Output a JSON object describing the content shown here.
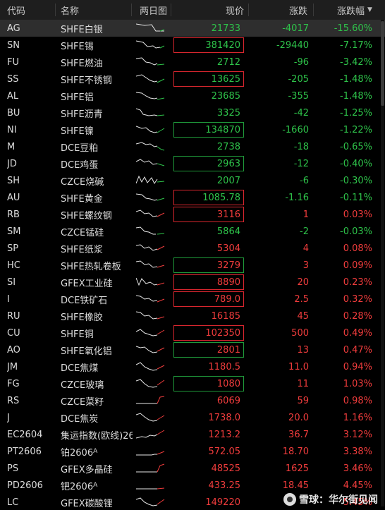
{
  "header": {
    "code": "代码",
    "name": "名称",
    "chart": "两日图",
    "price": "现价",
    "change": "涨跌",
    "pct": "涨跌幅",
    "sort_arrow": "▼"
  },
  "colors": {
    "up": "#f03c3c",
    "down": "#2ec34a"
  },
  "rows": [
    {
      "code": "AG",
      "name": "SHFE白银",
      "price": "21733",
      "change": "-4017",
      "pct": "-15.60%",
      "dir": "down",
      "box": "",
      "spark": [
        [
          0,
          2
        ],
        [
          12,
          4
        ],
        [
          22,
          3
        ],
        [
          28,
          12
        ],
        [
          34,
          12
        ],
        [
          40,
          12
        ]
      ],
      "sparkEnd": [
        [
          34,
          12
        ],
        [
          40,
          10
        ]
      ]
    },
    {
      "code": "SN",
      "name": "SHFE锡",
      "price": "381420",
      "change": "-29440",
      "pct": "-7.17%",
      "dir": "down",
      "box": "up",
      "spark": [
        [
          0,
          2
        ],
        [
          10,
          4
        ],
        [
          16,
          10
        ],
        [
          24,
          9
        ],
        [
          28,
          12
        ],
        [
          34,
          11
        ]
      ],
      "sparkEnd": [
        [
          34,
          12
        ],
        [
          40,
          9
        ]
      ]
    },
    {
      "code": "FU",
      "name": "SHFE燃油",
      "price": "2712",
      "change": "-96",
      "pct": "-3.42%",
      "dir": "down",
      "box": "",
      "spark": [
        [
          0,
          3
        ],
        [
          8,
          2
        ],
        [
          14,
          8
        ],
        [
          20,
          9
        ],
        [
          26,
          12
        ],
        [
          30,
          10
        ]
      ],
      "sparkEnd": [
        [
          30,
          12
        ],
        [
          40,
          11
        ]
      ]
    },
    {
      "code": "SS",
      "name": "SHFE不锈钢",
      "price": "13625",
      "change": "-205",
      "pct": "-1.48%",
      "dir": "down",
      "box": "up",
      "spark": [
        [
          0,
          4
        ],
        [
          8,
          2
        ],
        [
          14,
          6
        ],
        [
          20,
          10
        ],
        [
          26,
          12
        ],
        [
          30,
          11
        ]
      ],
      "sparkEnd": [
        [
          30,
          13
        ],
        [
          40,
          8
        ]
      ]
    },
    {
      "code": "AL",
      "name": "SHFE铝",
      "price": "23685",
      "change": "-355",
      "pct": "-1.48%",
      "dir": "down",
      "box": "",
      "spark": [
        [
          0,
          3
        ],
        [
          8,
          4
        ],
        [
          14,
          8
        ],
        [
          20,
          11
        ],
        [
          26,
          12
        ],
        [
          30,
          11
        ]
      ],
      "sparkEnd": [
        [
          30,
          13
        ],
        [
          40,
          11
        ]
      ]
    },
    {
      "code": "BU",
      "name": "SHFE沥青",
      "price": "3325",
      "change": "-42",
      "pct": "-1.25%",
      "dir": "down",
      "box": "",
      "spark": [
        [
          0,
          2
        ],
        [
          6,
          4
        ],
        [
          10,
          10
        ],
        [
          18,
          12
        ],
        [
          26,
          11
        ],
        [
          30,
          12
        ]
      ],
      "sparkEnd": [
        [
          30,
          12
        ],
        [
          40,
          11
        ]
      ]
    },
    {
      "code": "NI",
      "name": "SHFE镍",
      "price": "134870",
      "change": "-1660",
      "pct": "-1.22%",
      "dir": "down",
      "box": "dn",
      "spark": [
        [
          0,
          3
        ],
        [
          8,
          6
        ],
        [
          14,
          5
        ],
        [
          20,
          10
        ],
        [
          26,
          12
        ],
        [
          30,
          11
        ]
      ],
      "sparkEnd": [
        [
          30,
          12
        ],
        [
          40,
          6
        ]
      ]
    },
    {
      "code": "M",
      "name": "DCE豆粕",
      "price": "2738",
      "change": "-18",
      "pct": "-0.65%",
      "dir": "down",
      "box": "",
      "spark": [
        [
          0,
          4
        ],
        [
          8,
          2
        ],
        [
          14,
          5
        ],
        [
          20,
          4
        ],
        [
          26,
          8
        ],
        [
          30,
          7
        ]
      ],
      "sparkEnd": [
        [
          30,
          8
        ],
        [
          36,
          12
        ],
        [
          40,
          13
        ]
      ]
    },
    {
      "code": "JD",
      "name": "DCE鸡蛋",
      "price": "2963",
      "change": "-12",
      "pct": "-0.40%",
      "dir": "down",
      "box": "dn",
      "spark": [
        [
          0,
          5
        ],
        [
          6,
          2
        ],
        [
          12,
          6
        ],
        [
          18,
          4
        ],
        [
          24,
          9
        ],
        [
          30,
          8
        ]
      ],
      "sparkEnd": [
        [
          30,
          8
        ],
        [
          40,
          11
        ]
      ]
    },
    {
      "code": "SH",
      "name": "CZCE烧碱",
      "price": "2007",
      "change": "-6",
      "pct": "-0.30%",
      "dir": "down",
      "box": "",
      "spark": [
        [
          0,
          12
        ],
        [
          4,
          2
        ],
        [
          8,
          10
        ],
        [
          12,
          3
        ],
        [
          16,
          11
        ],
        [
          22,
          4
        ],
        [
          26,
          12
        ],
        [
          30,
          6
        ]
      ],
      "sparkEnd": [
        [
          30,
          10
        ],
        [
          40,
          9
        ]
      ]
    },
    {
      "code": "AU",
      "name": "SHFE黄金",
      "price": "1085.78",
      "change": "-1.16",
      "pct": "-0.11%",
      "dir": "down",
      "box": "up",
      "spark": [
        [
          0,
          3
        ],
        [
          8,
          4
        ],
        [
          14,
          9
        ],
        [
          20,
          10
        ],
        [
          26,
          12
        ],
        [
          30,
          11
        ]
      ],
      "sparkEnd": [
        [
          30,
          12
        ],
        [
          40,
          9
        ]
      ]
    },
    {
      "code": "RB",
      "name": "SHFE螺纹钢",
      "price": "3116",
      "change": "1",
      "pct": "0.03%",
      "dir": "up",
      "box": "up",
      "spark": [
        [
          0,
          4
        ],
        [
          6,
          2
        ],
        [
          12,
          7
        ],
        [
          18,
          6
        ],
        [
          24,
          11
        ],
        [
          30,
          10
        ]
      ],
      "sparkEnd": [
        [
          30,
          11
        ],
        [
          40,
          6
        ]
      ]
    },
    {
      "code": "SM",
      "name": "CZCE锰硅",
      "price": "5864",
      "change": "-2",
      "pct": "-0.03%",
      "dir": "down",
      "box": "",
      "spark": [
        [
          0,
          3
        ],
        [
          6,
          2
        ],
        [
          12,
          8
        ],
        [
          18,
          9
        ],
        [
          24,
          12
        ],
        [
          28,
          12
        ]
      ],
      "sparkEnd": [
        [
          30,
          12
        ],
        [
          40,
          11
        ]
      ]
    },
    {
      "code": "SP",
      "name": "SHFE纸浆",
      "price": "5304",
      "change": "4",
      "pct": "0.08%",
      "dir": "up",
      "box": "",
      "spark": [
        [
          0,
          4
        ],
        [
          6,
          3
        ],
        [
          12,
          8
        ],
        [
          18,
          6
        ],
        [
          24,
          11
        ],
        [
          30,
          9
        ]
      ],
      "sparkEnd": [
        [
          30,
          10
        ],
        [
          40,
          5
        ]
      ]
    },
    {
      "code": "HC",
      "name": "SHFE热轧卷板",
      "price": "3279",
      "change": "3",
      "pct": "0.09%",
      "dir": "up",
      "box": "dn",
      "spark": [
        [
          0,
          3
        ],
        [
          6,
          2
        ],
        [
          12,
          7
        ],
        [
          18,
          6
        ],
        [
          24,
          11
        ],
        [
          30,
          10
        ]
      ],
      "sparkEnd": [
        [
          30,
          11
        ],
        [
          40,
          8
        ]
      ]
    },
    {
      "code": "SI",
      "name": "GFEX工业硅",
      "price": "8890",
      "change": "20",
      "pct": "0.23%",
      "dir": "up",
      "box": "up",
      "spark": [
        [
          0,
          2
        ],
        [
          4,
          12
        ],
        [
          8,
          3
        ],
        [
          14,
          10
        ],
        [
          20,
          8
        ],
        [
          26,
          12
        ],
        [
          30,
          11
        ]
      ],
      "sparkEnd": [
        [
          30,
          12
        ],
        [
          40,
          9
        ]
      ]
    },
    {
      "code": "I",
      "name": "DCE铁矿石",
      "price": "789.0",
      "change": "2.5",
      "pct": "0.32%",
      "dir": "up",
      "box": "up",
      "spark": [
        [
          0,
          3
        ],
        [
          6,
          4
        ],
        [
          12,
          8
        ],
        [
          18,
          7
        ],
        [
          24,
          11
        ],
        [
          30,
          10
        ]
      ],
      "sparkEnd": [
        [
          30,
          12
        ],
        [
          40,
          8
        ]
      ]
    },
    {
      "code": "RU",
      "name": "SHFE橡胶",
      "price": "16185",
      "change": "45",
      "pct": "0.28%",
      "dir": "up",
      "box": "",
      "spark": [
        [
          0,
          2
        ],
        [
          6,
          3
        ],
        [
          12,
          8
        ],
        [
          18,
          7
        ],
        [
          24,
          12
        ],
        [
          30,
          11
        ]
      ],
      "sparkEnd": [
        [
          30,
          12
        ],
        [
          40,
          9
        ]
      ]
    },
    {
      "code": "CU",
      "name": "SHFE铜",
      "price": "102350",
      "change": "500",
      "pct": "0.49%",
      "dir": "up",
      "box": "up",
      "spark": [
        [
          0,
          6
        ],
        [
          6,
          3
        ],
        [
          12,
          8
        ],
        [
          18,
          10
        ],
        [
          24,
          12
        ],
        [
          30,
          11
        ]
      ],
      "sparkEnd": [
        [
          30,
          10
        ],
        [
          40,
          4
        ]
      ]
    },
    {
      "code": "AO",
      "name": "SHFE氧化铝",
      "price": "2801",
      "change": "13",
      "pct": "0.47%",
      "dir": "up",
      "box": "dn",
      "spark": [
        [
          0,
          3
        ],
        [
          6,
          5
        ],
        [
          12,
          4
        ],
        [
          18,
          9
        ],
        [
          24,
          12
        ],
        [
          30,
          11
        ]
      ],
      "sparkEnd": [
        [
          30,
          10
        ],
        [
          40,
          5
        ]
      ]
    },
    {
      "code": "JM",
      "name": "DCE焦煤",
      "price": "1180.5",
      "change": "11.0",
      "pct": "0.94%",
      "dir": "up",
      "box": "",
      "spark": [
        [
          0,
          5
        ],
        [
          6,
          2
        ],
        [
          12,
          8
        ],
        [
          18,
          11
        ],
        [
          24,
          13
        ],
        [
          30,
          12
        ]
      ],
      "sparkEnd": [
        [
          30,
          11
        ],
        [
          40,
          6
        ]
      ]
    },
    {
      "code": "FG",
      "name": "CZCE玻璃",
      "price": "1080",
      "change": "11",
      "pct": "1.03%",
      "dir": "up",
      "box": "dn",
      "spark": [
        [
          0,
          4
        ],
        [
          6,
          2
        ],
        [
          12,
          8
        ],
        [
          18,
          12
        ],
        [
          24,
          13
        ],
        [
          30,
          12
        ]
      ],
      "sparkEnd": [
        [
          30,
          10
        ],
        [
          40,
          3
        ]
      ]
    },
    {
      "code": "RS",
      "name": "CZCE菜籽",
      "price": "6069",
      "change": "59",
      "pct": "0.98%",
      "dir": "up",
      "box": "",
      "spark": [
        [
          0,
          12
        ],
        [
          10,
          12
        ],
        [
          18,
          12
        ],
        [
          24,
          12
        ],
        [
          30,
          12
        ]
      ],
      "sparkEnd": [
        [
          30,
          12
        ],
        [
          34,
          3
        ],
        [
          40,
          2
        ]
      ]
    },
    {
      "code": "J",
      "name": "DCE焦炭",
      "price": "1738.0",
      "change": "20.0",
      "pct": "1.16%",
      "dir": "up",
      "box": "",
      "spark": [
        [
          0,
          4
        ],
        [
          6,
          2
        ],
        [
          12,
          7
        ],
        [
          18,
          11
        ],
        [
          24,
          13
        ],
        [
          30,
          12
        ]
      ],
      "sparkEnd": [
        [
          30,
          11
        ],
        [
          40,
          5
        ]
      ]
    },
    {
      "code": "EC2604",
      "name": "集运指数(欧线)26",
      "price": "1213.2",
      "change": "36.7",
      "pct": "3.12%",
      "dir": "up",
      "box": "",
      "spark": [
        [
          0,
          13
        ],
        [
          8,
          11
        ],
        [
          14,
          12
        ],
        [
          20,
          9
        ],
        [
          26,
          10
        ],
        [
          30,
          8
        ]
      ],
      "sparkEnd": [
        [
          30,
          8
        ],
        [
          40,
          2
        ]
      ]
    },
    {
      "code": "PT2606",
      "name": "铂2606",
      "name_sup": "A",
      "price": "572.05",
      "change": "18.70",
      "pct": "3.38%",
      "dir": "up",
      "box": "",
      "spark": [
        [
          0,
          13
        ],
        [
          12,
          13
        ],
        [
          22,
          13
        ],
        [
          26,
          12
        ],
        [
          30,
          12
        ]
      ],
      "sparkEnd": [
        [
          30,
          12
        ],
        [
          40,
          8
        ]
      ]
    },
    {
      "code": "PS",
      "name": "GFEX多晶硅",
      "price": "48525",
      "change": "1625",
      "pct": "3.46%",
      "dir": "up",
      "box": "",
      "spark": [
        [
          0,
          13
        ],
        [
          10,
          13
        ],
        [
          20,
          13
        ],
        [
          26,
          13
        ],
        [
          30,
          13
        ]
      ],
      "sparkEnd": [
        [
          30,
          13
        ],
        [
          34,
          4
        ],
        [
          40,
          2
        ]
      ]
    },
    {
      "code": "PD2606",
      "name": "钯2606",
      "name_sup": "A",
      "price": "433.25",
      "change": "18.45",
      "pct": "4.45%",
      "dir": "up",
      "box": "",
      "spark": [
        [
          0,
          13
        ],
        [
          10,
          13
        ],
        [
          20,
          13
        ],
        [
          26,
          13
        ],
        [
          30,
          13
        ]
      ],
      "sparkEnd": [
        [
          30,
          13
        ],
        [
          40,
          12
        ]
      ]
    },
    {
      "code": "LC",
      "name": "GFEX碳酸锂",
      "price": "149220",
      "change": "",
      "pct": "5.45%",
      "dir": "up",
      "box": "",
      "spark": [
        [
          0,
          4
        ],
        [
          6,
          2
        ],
        [
          12,
          8
        ],
        [
          18,
          11
        ],
        [
          24,
          13
        ],
        [
          30,
          12
        ]
      ],
      "sparkEnd": [
        [
          30,
          11
        ],
        [
          40,
          4
        ]
      ]
    }
  ],
  "watermark": "雪球：华尔街见闻"
}
